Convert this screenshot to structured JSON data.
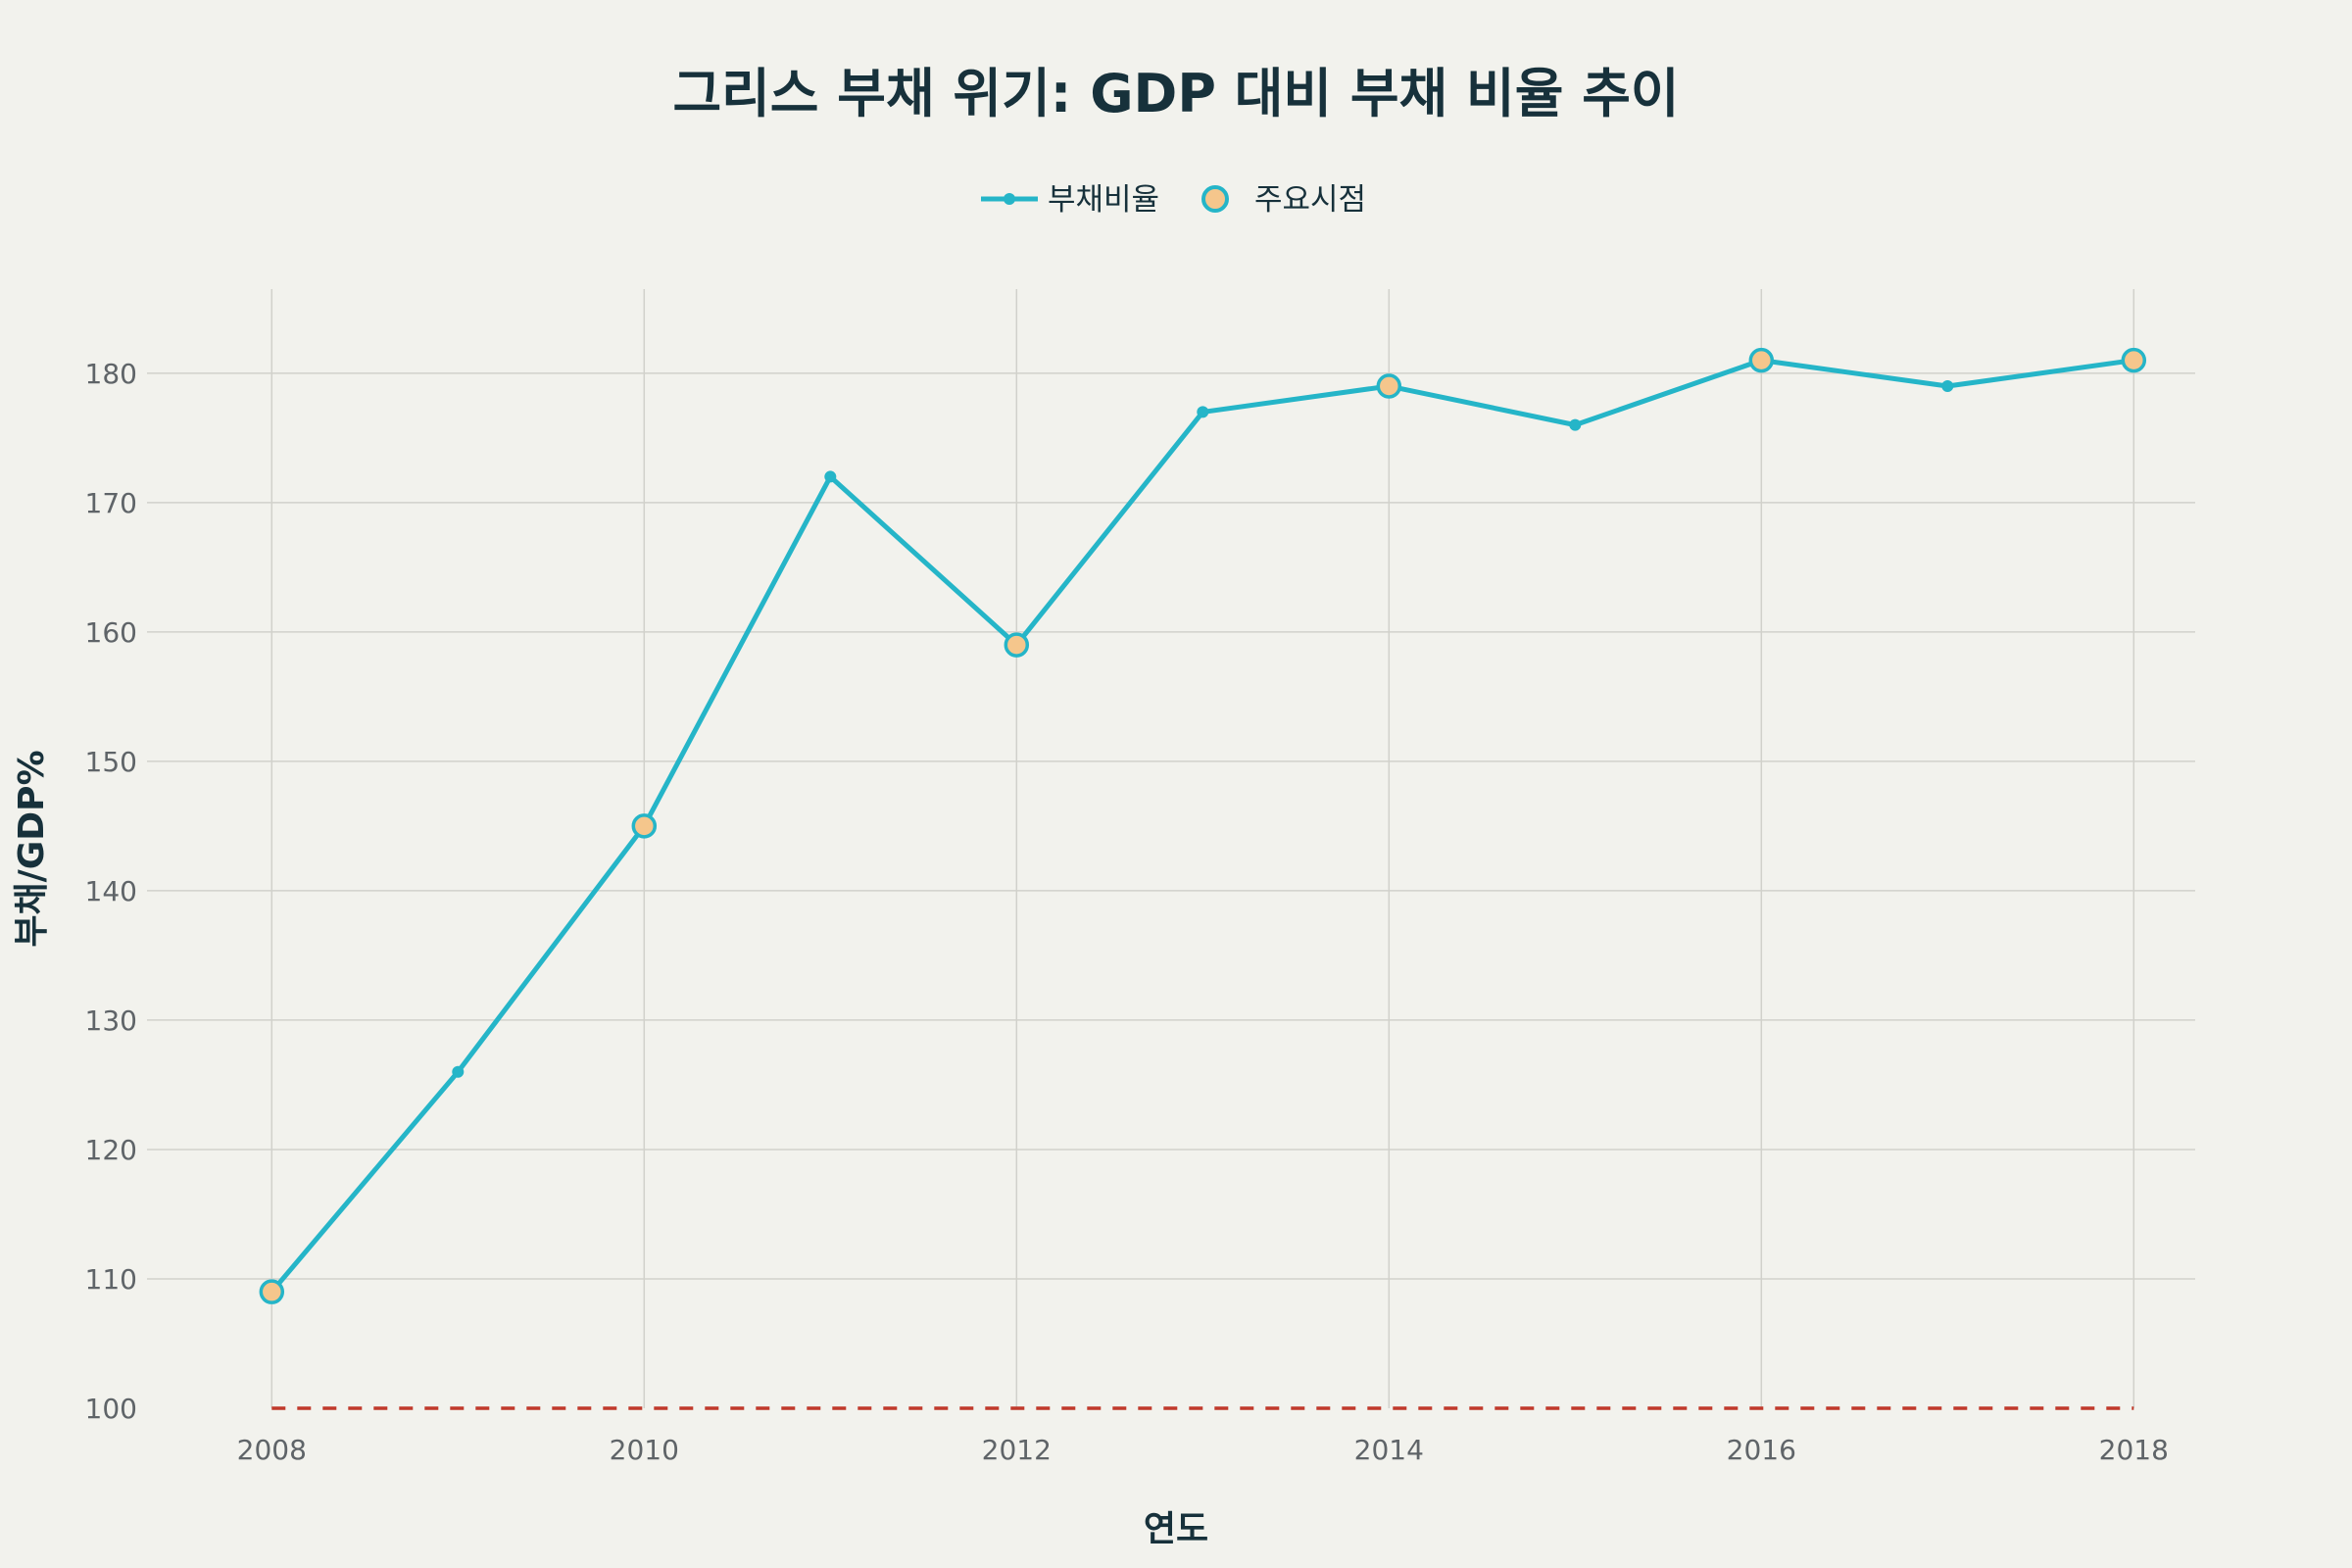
{
  "chart_data": {
    "type": "line",
    "title": "그리스 부채 위기: GDP 대비 부채 비율 추이",
    "xlabel": "연도",
    "ylabel": "부채/GDP%",
    "x": [
      2008,
      2009,
      2010,
      2011,
      2012,
      2013,
      2014,
      2015,
      2016,
      2017,
      2018
    ],
    "series": [
      {
        "name": "부채비율",
        "values": [
          109,
          126,
          145,
          172,
          159,
          177,
          179,
          176,
          181,
          179,
          181
        ]
      }
    ],
    "key_points": {
      "name": "주요시점",
      "x": [
        2008,
        2010,
        2012,
        2014,
        2016,
        2018
      ],
      "values": [
        109,
        145,
        159,
        179,
        181,
        181
      ]
    },
    "reference_line": {
      "y": 100,
      "style": "dashed"
    },
    "xlim": [
      2007.33,
      2018.33
    ],
    "ylim": [
      100,
      186.5
    ],
    "xticks": [
      2008,
      2010,
      2012,
      2014,
      2016,
      2018
    ],
    "yticks": [
      100,
      110,
      120,
      130,
      140,
      150,
      160,
      170,
      180
    ],
    "legend": "top-center",
    "grid": true,
    "colors": {
      "line": "#25b5c8",
      "marker_fill": "#f5c68c",
      "reference": "#c0392b",
      "background": "#f2f2ed"
    }
  }
}
